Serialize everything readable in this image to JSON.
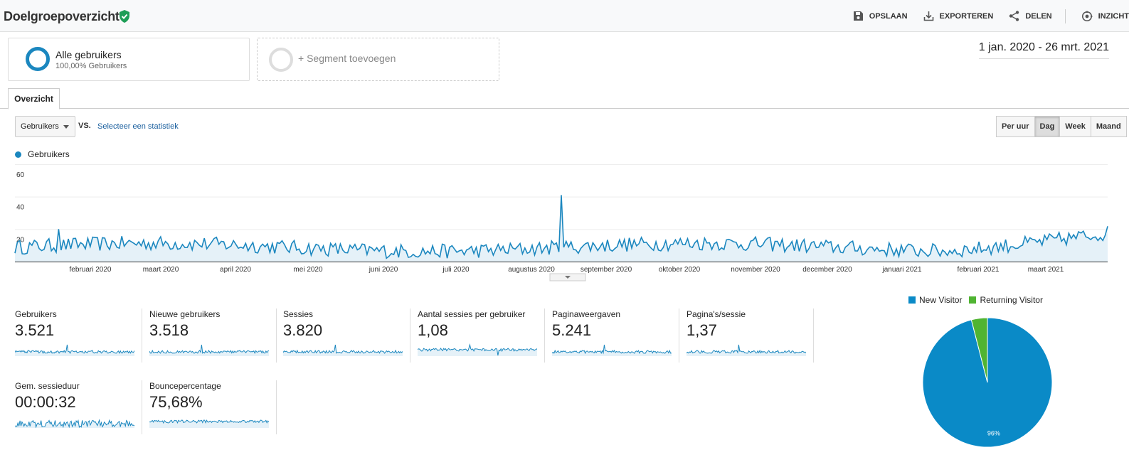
{
  "header": {
    "title": "Doelgroepoverzicht",
    "actions": [
      {
        "label": "OPSLAAN",
        "icon": "save-icon"
      },
      {
        "label": "EXPORTEREN",
        "icon": "export-icon"
      },
      {
        "label": "DELEN",
        "icon": "share-icon"
      },
      {
        "label": "INZICHT",
        "icon": "insights-icon"
      }
    ]
  },
  "segments": {
    "active": {
      "name": "Alle gebruikers",
      "detail": "100,00% Gebruikers"
    },
    "add_label": "+ Segment toevoegen"
  },
  "date_range": "1 jan. 2020 - 26 mrt. 2021",
  "tabs": [
    "Overzicht"
  ],
  "controls": {
    "metric_select": "Gebruikers",
    "vs_label": "VS.",
    "select_stat": "Selecteer een statistiek",
    "periods": [
      "Per uur",
      "Dag",
      "Week",
      "Maand"
    ],
    "active_period": "Dag"
  },
  "chart_data": [
    {
      "type": "line",
      "series": [
        {
          "name": "Gebruikers",
          "color": "#1b87bf"
        }
      ],
      "y_ticks": [
        "60",
        "40",
        "20"
      ],
      "ylim": [
        0,
        60
      ],
      "x_labels": [
        "februari 2020",
        "maart 2020",
        "april 2020",
        "mei 2020",
        "juni 2020",
        "juli 2020",
        "augustus 2020",
        "september 2020",
        "oktober 2020",
        "november 2020",
        "december 2020",
        "januari 2021",
        "februari 2021",
        "maart 2021"
      ],
      "grid": true,
      "legend": "top-left"
    },
    {
      "type": "pie",
      "slices": [
        {
          "label": "New Visitor",
          "value": 96,
          "color": "#0a8ac7",
          "value_label": "96%"
        },
        {
          "label": "Returning Visitor",
          "value": 4,
          "color": "#50b432"
        }
      ],
      "legend": "top"
    }
  ],
  "metrics": [
    {
      "label": "Gebruikers",
      "value": "3.521"
    },
    {
      "label": "Nieuwe gebruikers",
      "value": "3.518"
    },
    {
      "label": "Sessies",
      "value": "3.820"
    },
    {
      "label": "Aantal sessies per gebruiker",
      "value": "1,08"
    },
    {
      "label": "Paginaweergaven",
      "value": "5.241"
    },
    {
      "label": "Pagina's/sessie",
      "value": "1,37"
    },
    {
      "label": "Gem. sessieduur",
      "value": "00:00:32"
    },
    {
      "label": "Bouncepercentage",
      "value": "75,68%"
    }
  ]
}
